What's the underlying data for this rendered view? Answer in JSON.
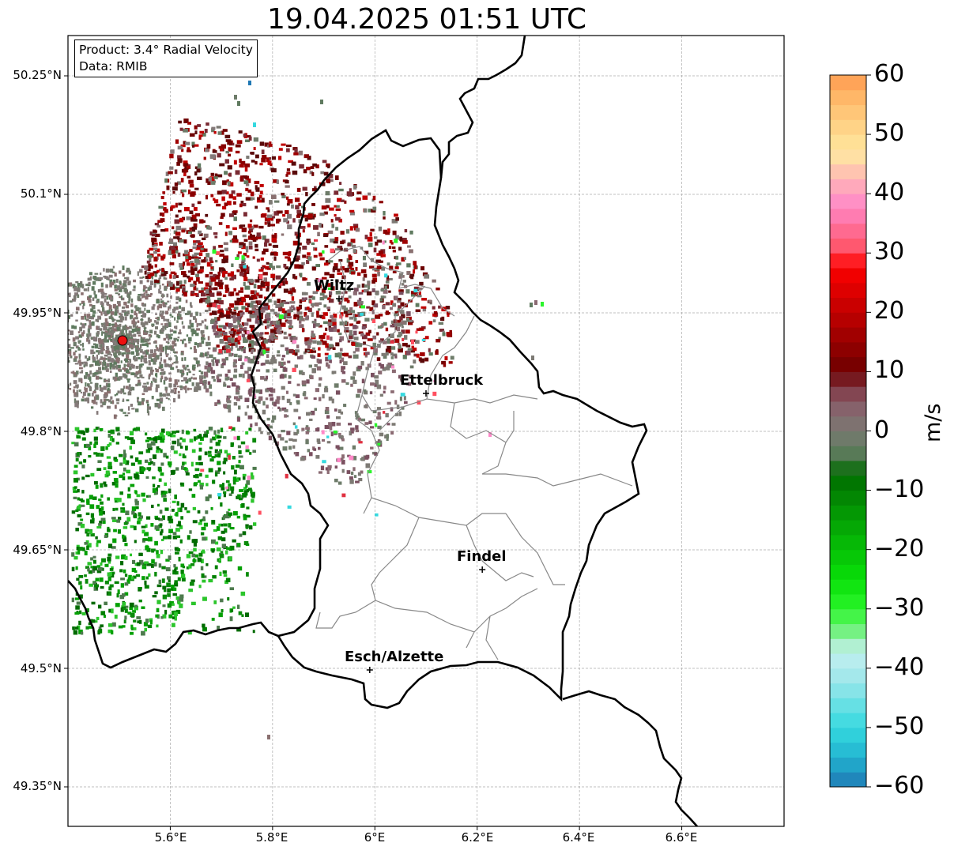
{
  "title": "19.04.2025 01:51 UTC",
  "info_box": {
    "product": "Product: 3.4° Radial Velocity",
    "data": "Data: RMIB"
  },
  "y_axis_labels": [
    "50.25°N",
    "50.1°N",
    "49.95°N",
    "49.8°N",
    "49.65°N",
    "49.5°N",
    "49.35°N"
  ],
  "x_axis_labels": [
    "5.6°E",
    "5.8°E",
    "6°E",
    "6.2°E",
    "6.4°E",
    "6.6°E"
  ],
  "cities": [
    {
      "name": "Wiltz",
      "lon": 5.93,
      "lat": 49.968
    },
    {
      "name": "Ettelbruck",
      "lon": 6.1,
      "lat": 49.848
    },
    {
      "name": "Findel",
      "lon": 6.21,
      "lat": 49.625
    },
    {
      "name": "Esch/Alzette",
      "lon": 5.99,
      "lat": 49.498
    }
  ],
  "radar_site": {
    "lon": 5.505,
    "lat": 49.914
  },
  "extent": {
    "lon_min": 5.4,
    "lon_max": 6.8,
    "lat_min": 49.3,
    "lat_max": 50.3
  },
  "colorbar": {
    "label": "m/s",
    "min": -60,
    "max": 60,
    "ticks": [
      "60",
      "50",
      "40",
      "30",
      "20",
      "10",
      "0",
      "−10",
      "−20",
      "−30",
      "−40",
      "−50",
      "−60"
    ],
    "stops": [
      {
        "v": -60,
        "c": "#1f78b4"
      },
      {
        "v": -55,
        "c": "#22b4d0"
      },
      {
        "v": -50,
        "c": "#35d9df"
      },
      {
        "v": -42,
        "c": "#9ee7ea"
      },
      {
        "v": -37,
        "c": "#c6f0f0"
      },
      {
        "v": -35,
        "c": "#8ef0a0"
      },
      {
        "v": -30,
        "c": "#2bf52b"
      },
      {
        "v": -25,
        "c": "#08e008"
      },
      {
        "v": -15,
        "c": "#05a005"
      },
      {
        "v": -7,
        "c": "#006a00"
      },
      {
        "v": -5,
        "c": "#4d7a4d"
      },
      {
        "v": 0,
        "c": "#7a7a73"
      },
      {
        "v": 5,
        "c": "#8a5a68"
      },
      {
        "v": 8,
        "c": "#7a2a33"
      },
      {
        "v": 10,
        "c": "#6e0000"
      },
      {
        "v": 20,
        "c": "#c00000"
      },
      {
        "v": 28,
        "c": "#ff0000"
      },
      {
        "v": 30,
        "c": "#ff4f5f"
      },
      {
        "v": 38,
        "c": "#ff88c8"
      },
      {
        "v": 42,
        "c": "#ffb0b8"
      },
      {
        "v": 47,
        "c": "#ffe9a0"
      },
      {
        "v": 55,
        "c": "#ffc070"
      },
      {
        "v": 60,
        "c": "#ff9a50"
      }
    ]
  }
}
